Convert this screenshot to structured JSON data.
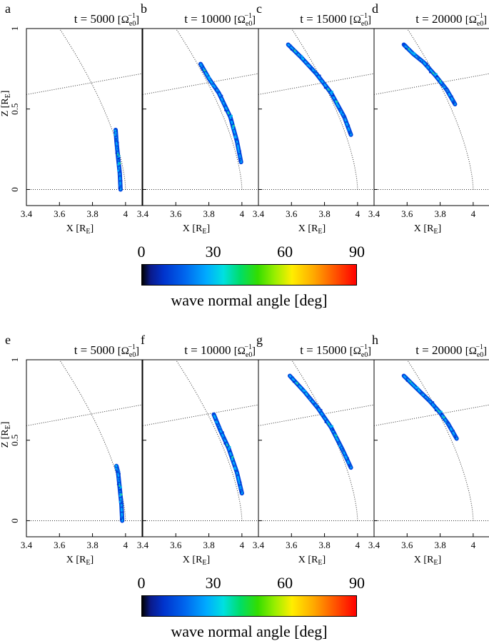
{
  "chart_data": {
    "type": "scatter",
    "description_rows": [
      {
        "panels": [
          {
            "letter": "a",
            "time": "t =  5000",
            "track": [
              [
                3.97,
                0.0
              ],
              [
                3.965,
                0.1
              ],
              [
                3.955,
                0.2
              ],
              [
                3.945,
                0.3
              ],
              [
                3.94,
                0.37
              ]
            ],
            "ref": [
              [
                3.97,
                0.02
              ],
              [
                3.95,
                0.35
              ]
            ]
          },
          {
            "letter": "b",
            "time": "t =  10000",
            "track": [
              [
                3.995,
                0.17
              ],
              [
                3.97,
                0.3
              ],
              [
                3.93,
                0.45
              ],
              [
                3.86,
                0.6
              ],
              [
                3.8,
                0.69
              ],
              [
                3.75,
                0.78
              ]
            ],
            "ref": [
              [
                3.98,
                0.2
              ],
              [
                3.78,
                0.72
              ]
            ]
          },
          {
            "letter": "c",
            "time": "t =  15000",
            "track": [
              [
                3.96,
                0.34
              ],
              [
                3.92,
                0.45
              ],
              [
                3.84,
                0.6
              ],
              [
                3.75,
                0.72
              ],
              [
                3.66,
                0.82
              ],
              [
                3.58,
                0.9
              ]
            ],
            "ref": [
              [
                3.95,
                0.36
              ],
              [
                3.6,
                0.88
              ]
            ]
          },
          {
            "letter": "d",
            "time": "t =  20000",
            "track": [
              [
                3.89,
                0.53
              ],
              [
                3.84,
                0.62
              ],
              [
                3.77,
                0.71
              ],
              [
                3.7,
                0.79
              ],
              [
                3.64,
                0.84
              ],
              [
                3.58,
                0.9
              ]
            ],
            "ref": [
              [
                3.88,
                0.55
              ],
              [
                3.6,
                0.88
              ]
            ]
          }
        ]
      },
      {
        "panels": [
          {
            "letter": "e",
            "time": "t =  5000",
            "track": [
              [
                3.98,
                0.0
              ],
              [
                3.975,
                0.1
              ],
              [
                3.965,
                0.2
              ],
              [
                3.955,
                0.3
              ],
              [
                3.945,
                0.34
              ]
            ],
            "ref": [
              [
                3.97,
                0.02
              ],
              [
                3.95,
                0.32
              ]
            ]
          },
          {
            "letter": "f",
            "time": "t =  10000",
            "track": [
              [
                4.0,
                0.17
              ],
              [
                3.97,
                0.3
              ],
              [
                3.92,
                0.45
              ],
              [
                3.87,
                0.56
              ],
              [
                3.83,
                0.66
              ]
            ],
            "ref": [
              [
                3.99,
                0.2
              ],
              [
                3.85,
                0.62
              ]
            ]
          },
          {
            "letter": "g",
            "time": "t =  15000",
            "track": [
              [
                3.96,
                0.33
              ],
              [
                3.91,
                0.44
              ],
              [
                3.84,
                0.58
              ],
              [
                3.76,
                0.7
              ],
              [
                3.68,
                0.8
              ],
              [
                3.59,
                0.9
              ]
            ],
            "ref": [
              [
                3.95,
                0.35
              ],
              [
                3.6,
                0.88
              ]
            ]
          },
          {
            "letter": "h",
            "time": "t =  20000",
            "track": [
              [
                3.9,
                0.51
              ],
              [
                3.85,
                0.6
              ],
              [
                3.8,
                0.67
              ],
              [
                3.74,
                0.74
              ],
              [
                3.66,
                0.82
              ],
              [
                3.58,
                0.9
              ]
            ],
            "ref": [
              [
                3.88,
                0.53
              ],
              [
                3.6,
                0.88
              ]
            ]
          }
        ]
      }
    ],
    "time_unit": "[Ω",
    "time_unit_sub": "e0",
    "time_unit_sup": "−1",
    "time_unit_close": "]",
    "xlabel": "X [R",
    "xlabel_sub": "E",
    "xlabel_close": "]",
    "ylabel": "Z [R",
    "ylabel_sub": "E",
    "ylabel_close": "]",
    "xlim": [
      3.4,
      4.1
    ],
    "ylim": [
      -0.1,
      1.0
    ],
    "xticks": [
      "3.4",
      "3.6",
      "3.8",
      "4"
    ],
    "xtick_values": [
      3.4,
      3.6,
      3.8,
      4.0
    ],
    "yticks": [
      "0",
      "0.5",
      "1"
    ],
    "ytick_values": [
      0,
      0.5,
      1.0
    ],
    "field_line": {
      "r0": 4.0,
      "x_top": 3.6
    },
    "latitude_line": {
      "x0": 3.4,
      "z0": 0.59,
      "x1": 4.1,
      "z1": 0.72
    },
    "colorbar": {
      "min": 0,
      "max": 90,
      "ticks": [
        "0",
        "30",
        "60",
        "90"
      ],
      "label": "wave normal angle [deg]"
    }
  }
}
